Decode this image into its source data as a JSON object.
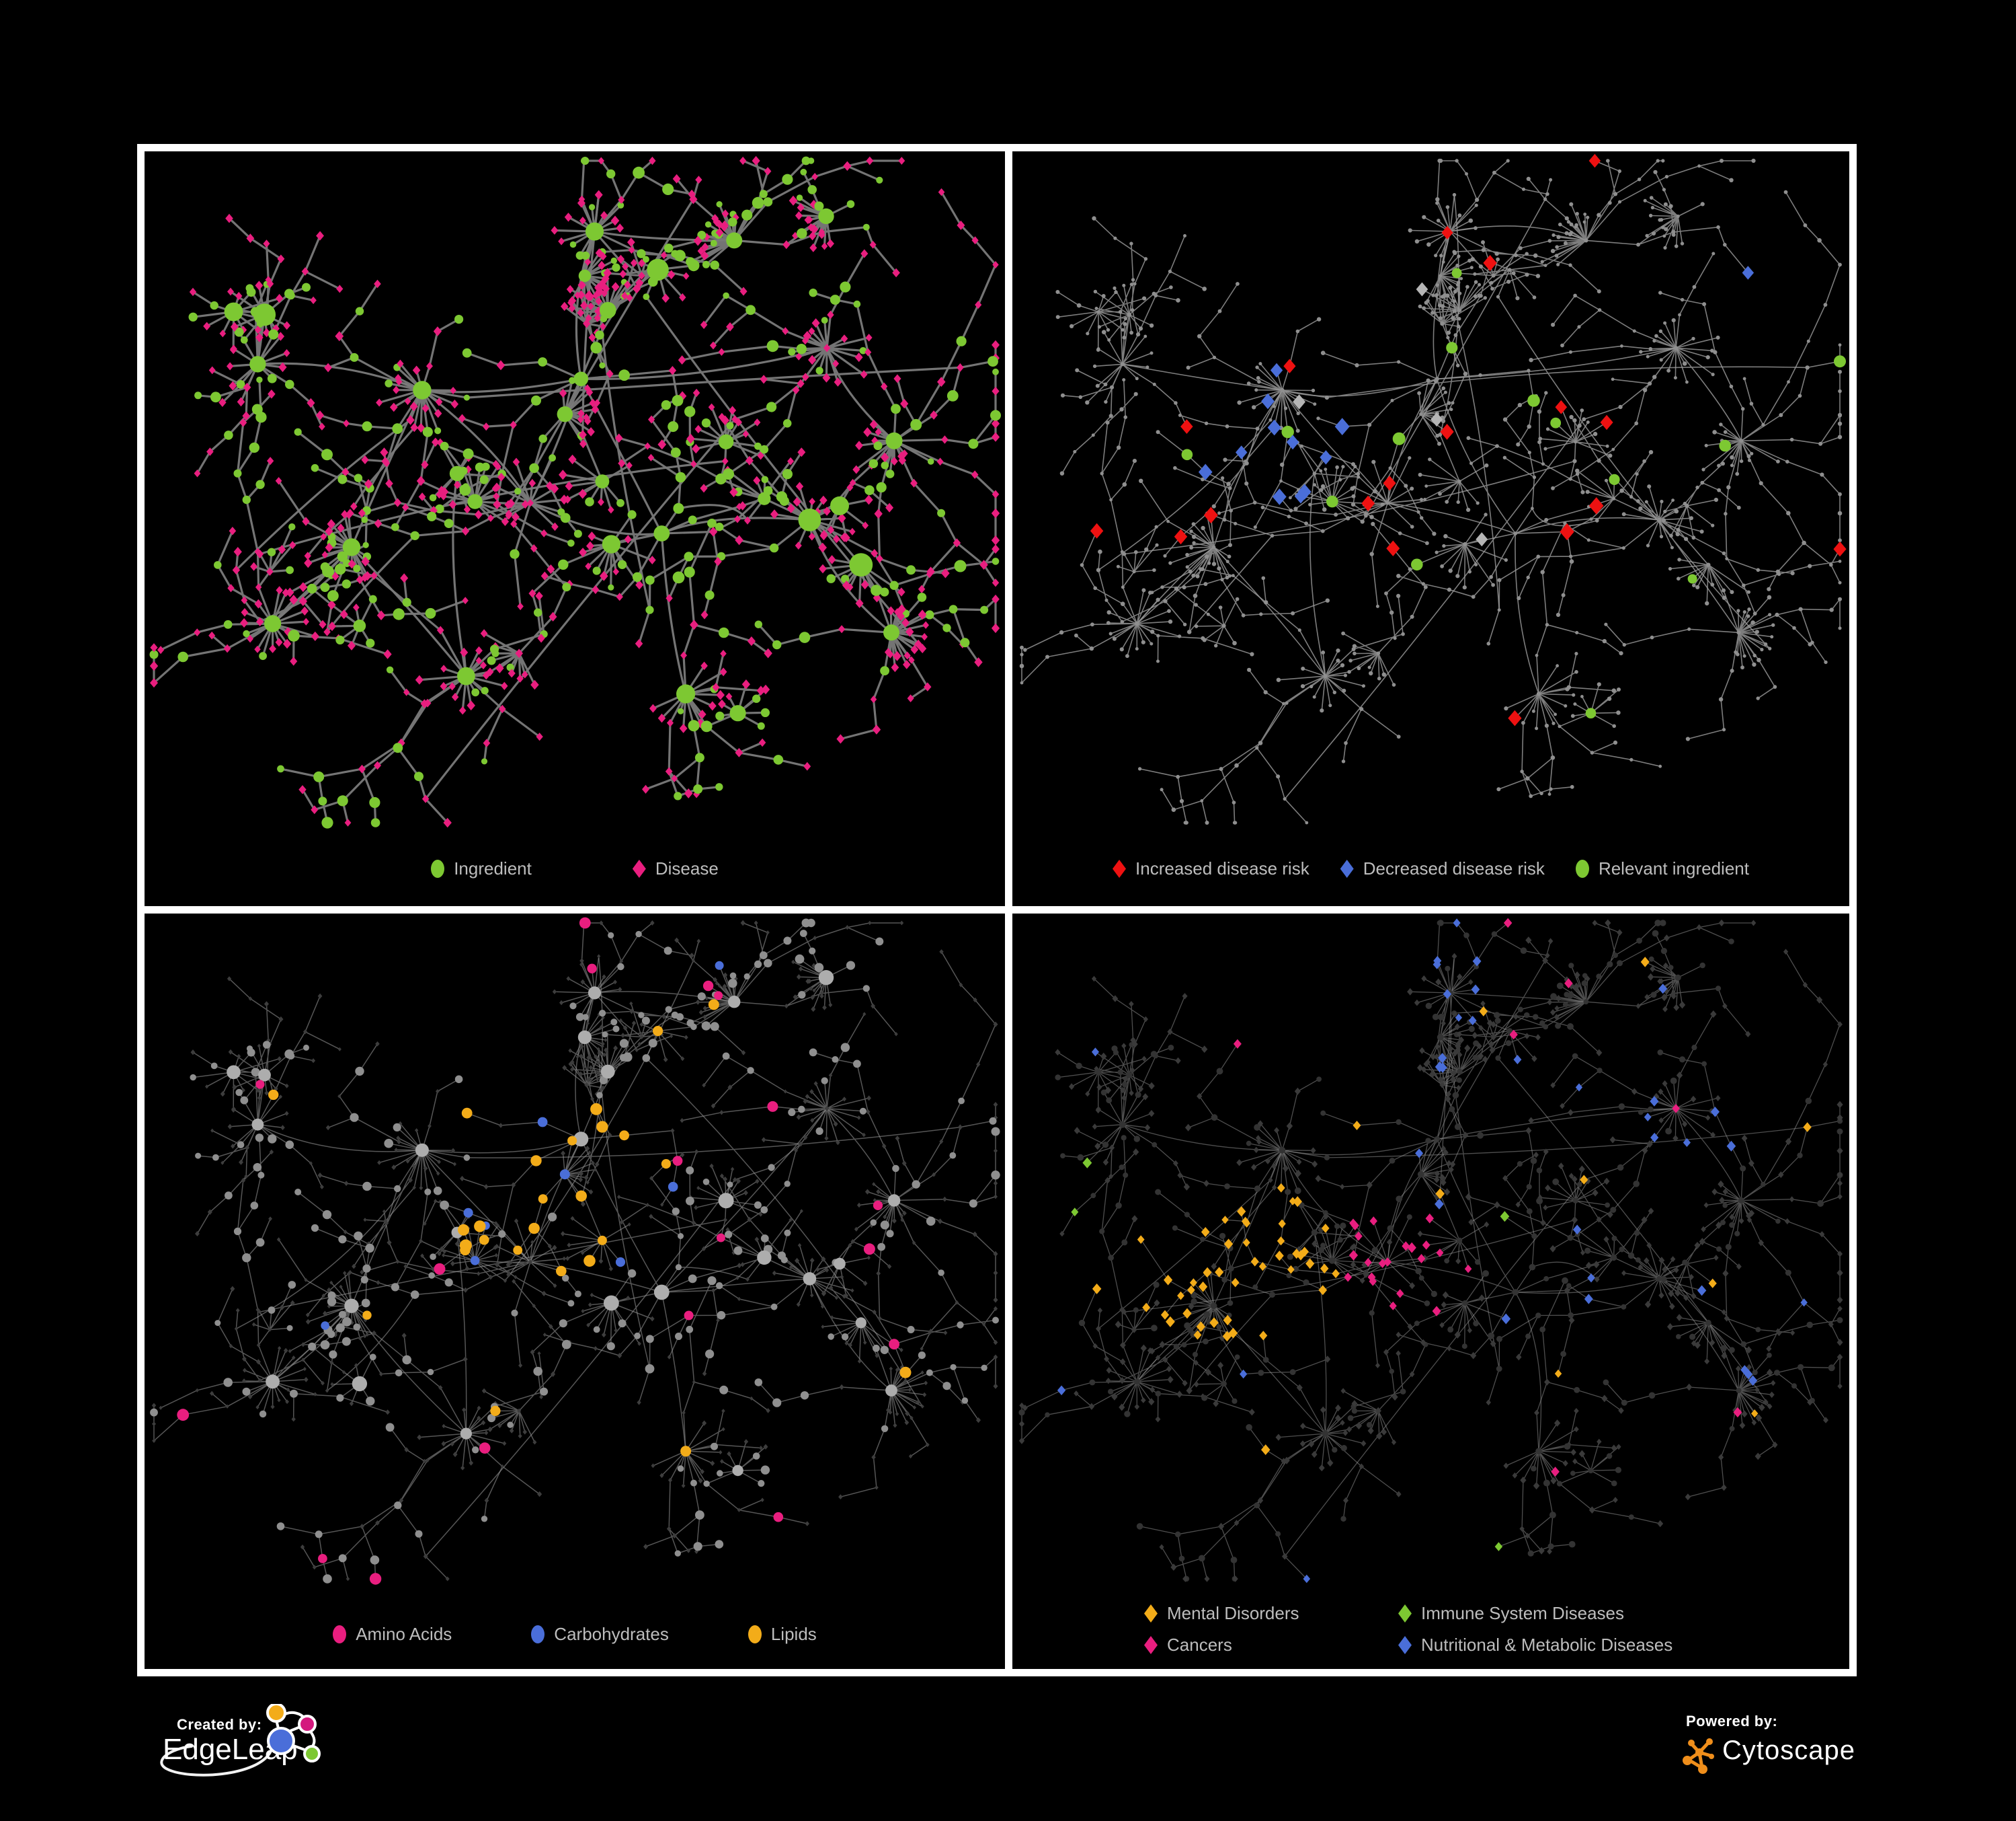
{
  "palette": {
    "green": "#7dc832",
    "pink": "#e91e7f",
    "red": "#ee1111",
    "blue": "#4a6ed9",
    "orange": "#f3ac19",
    "silver": "#b5b5b5",
    "gray_node": "#8f8f8f",
    "dim_node": "#3a3a3a",
    "edge_gray": "#7a7a7a",
    "legend_text": "#bdbdbd",
    "frame_white": "#ffffff",
    "background": "#000000"
  },
  "panels": [
    {
      "name": "ingredient-disease",
      "style": "full",
      "legend": [
        {
          "shape": "circle",
          "color": "#7dc832",
          "label": "Ingredient"
        },
        {
          "shape": "diamond",
          "color": "#e91e7f",
          "label": "Disease"
        }
      ]
    },
    {
      "name": "disease-risk",
      "style": "risk",
      "legend": [
        {
          "shape": "diamond",
          "color": "#ee1111",
          "label": "Increased disease risk"
        },
        {
          "shape": "diamond",
          "color": "#4a6ed9",
          "label": "Decreased disease risk"
        },
        {
          "shape": "circle",
          "color": "#7dc832",
          "label": "Relevant ingredient"
        }
      ]
    },
    {
      "name": "nutrient-groups",
      "style": "nutrients",
      "legend": [
        {
          "shape": "circle",
          "color": "#e91e7f",
          "label": "Amino Acids"
        },
        {
          "shape": "circle",
          "color": "#4a6ed9",
          "label": "Carbohydrates"
        },
        {
          "shape": "circle",
          "color": "#f3ac19",
          "label": "Lipids"
        }
      ]
    },
    {
      "name": "disease-groups",
      "style": "diseases",
      "legend": [
        {
          "shape": "diamond",
          "color": "#f3ac19",
          "label": "Mental Disorders"
        },
        {
          "shape": "diamond",
          "color": "#7dc832",
          "label": "Immune System Diseases"
        },
        {
          "shape": "diamond",
          "color": "#e91e7f",
          "label": "Cancers"
        },
        {
          "shape": "diamond",
          "color": "#4a6ed9",
          "label": "Nutritional & Metabolic Diseases"
        }
      ]
    }
  ],
  "footer": {
    "created_by": "Created by:",
    "edgeleap": "EdgeLeap",
    "powered_by": "Powered by:",
    "cytoscape": "Cytoscape"
  },
  "network": {
    "seed": 1337,
    "fans": 22,
    "cross": 14,
    "clusters": [
      [
        0.33,
        0.36
      ],
      [
        0.5,
        0.33
      ],
      [
        0.45,
        0.52
      ],
      [
        0.24,
        0.58
      ],
      [
        0.6,
        0.56
      ],
      [
        0.37,
        0.78
      ],
      [
        0.63,
        0.8
      ],
      [
        0.8,
        0.28
      ],
      [
        0.13,
        0.3
      ],
      [
        0.52,
        0.13
      ],
      [
        0.78,
        0.55
      ],
      [
        0.15,
        0.7
      ],
      [
        0.87,
        0.7
      ],
      [
        0.68,
        0.14
      ],
      [
        0.88,
        0.42
      ]
    ]
  }
}
